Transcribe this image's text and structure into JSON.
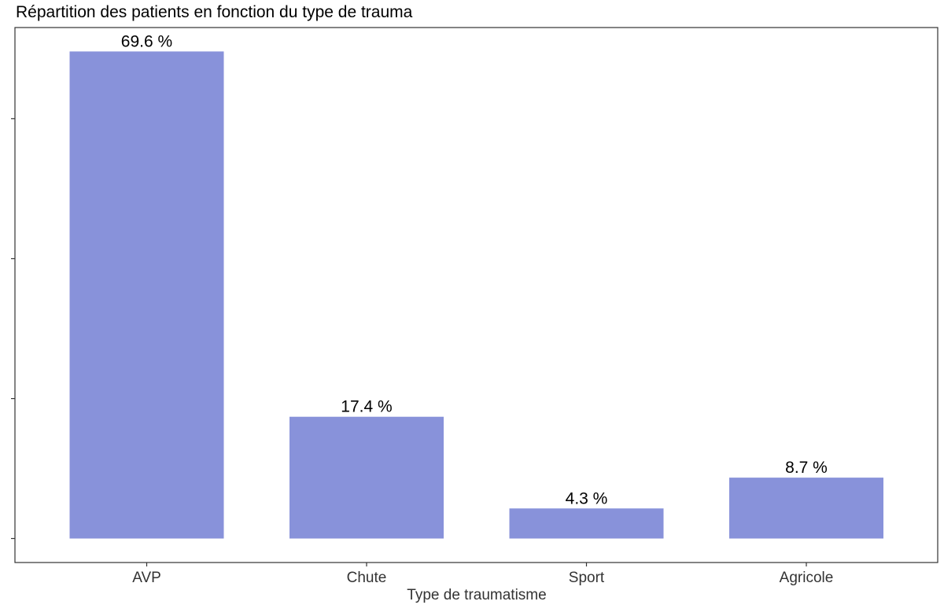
{
  "chart_data": {
    "type": "bar",
    "title": "Répartition des patients en fonction du type de trauma",
    "xlabel": "Type de traumatisme",
    "ylabel": "",
    "categories": [
      "AVP",
      "Chute",
      "Sport",
      "Agricole"
    ],
    "values": [
      69.6,
      17.4,
      4.3,
      8.7
    ],
    "data_labels": [
      "69.6 %",
      "17.4 %",
      "4.3 %",
      "8.7 %"
    ],
    "ylim": [
      0,
      72
    ],
    "y_tick_values": [
      0,
      20,
      40,
      60
    ],
    "y_tick_labels_visible": false,
    "grid": false,
    "legend": "none",
    "bar_color": "#8892DA",
    "panel_border_color": "#333333",
    "text_color": "#000000",
    "axis_text_color": "#333333"
  }
}
